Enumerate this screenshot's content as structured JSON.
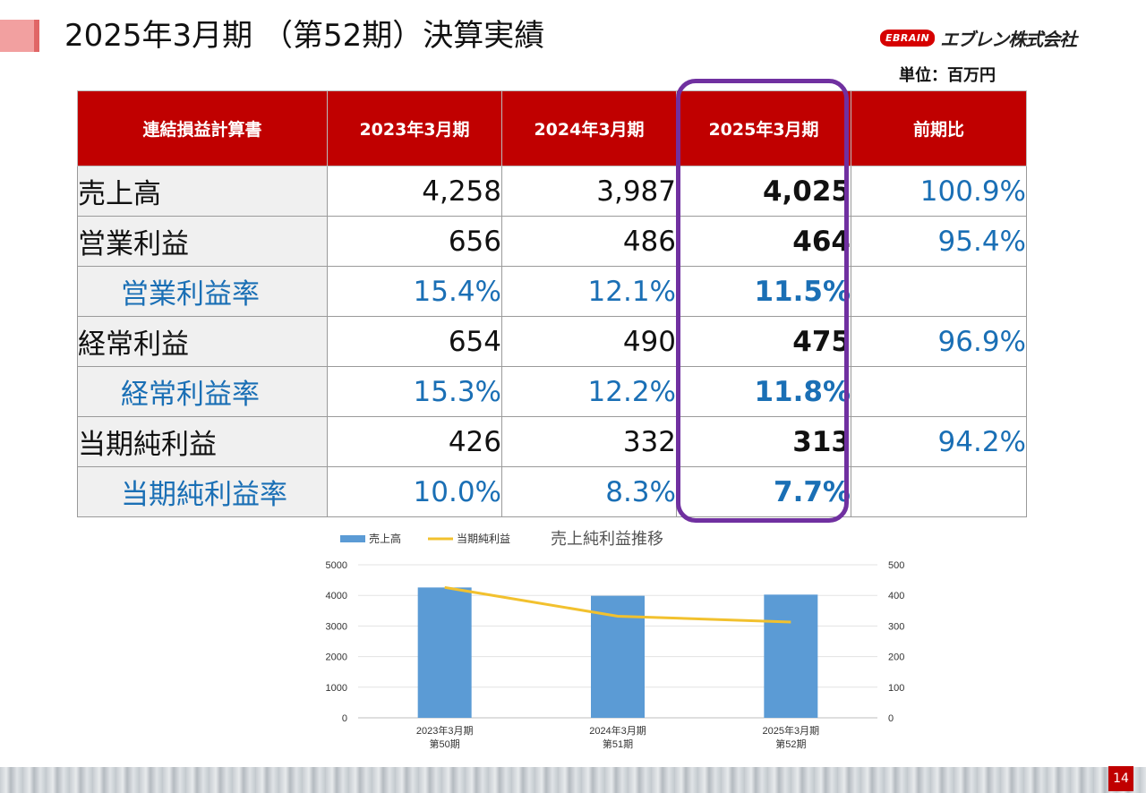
{
  "title": "2025年3月期 （第52期）決算実績",
  "logo": {
    "badge": "EBRAIN",
    "name": "エブレン株式会社"
  },
  "unit": "単位：百万円",
  "table": {
    "headers": [
      "連結損益計算書",
      "2023年3月期",
      "2024年3月期",
      "2025年3月期",
      "前期比"
    ],
    "rows": [
      {
        "label": "売上高",
        "v2023": "4,258",
        "v2024": "3,987",
        "v2025": "4,025",
        "ratio": "100.9%"
      },
      {
        "label": "営業利益",
        "v2023": "656",
        "v2024": "486",
        "v2025": "464",
        "ratio": "95.4%"
      },
      {
        "label": "営業利益率",
        "v2023": "15.4%",
        "v2024": "12.1%",
        "v2025": "11.5%",
        "ratio": ""
      },
      {
        "label": "経常利益",
        "v2023": "654",
        "v2024": "490",
        "v2025": "475",
        "ratio": "96.9%"
      },
      {
        "label": "経常利益率",
        "v2023": "15.3%",
        "v2024": "12.2%",
        "v2025": "11.8%",
        "ratio": ""
      },
      {
        "label": "当期純利益",
        "v2023": "426",
        "v2024": "332",
        "v2025": "313",
        "ratio": "94.2%"
      },
      {
        "label": "当期純利益率",
        "v2023": "10.0%",
        "v2024": "8.3%",
        "v2025": "7.7%",
        "ratio": ""
      }
    ]
  },
  "chart_data": {
    "type": "bar",
    "title": "売上純利益推移",
    "categories": [
      "2023年3月期\n第50期",
      "2024年3月期\n第51期",
      "2025年3月期\n第52期"
    ],
    "series": [
      {
        "name": "売上高",
        "kind": "bar",
        "axis": "left",
        "color": "#5b9bd5",
        "values": [
          4258,
          3987,
          4025
        ]
      },
      {
        "name": "当期純利益",
        "kind": "line",
        "axis": "right",
        "color": "#f2c12e",
        "values": [
          426,
          332,
          313
        ]
      }
    ],
    "ylim_left": [
      0,
      5000
    ],
    "yticks_left": [
      "0",
      "1000",
      "2000",
      "3000",
      "4000",
      "5000"
    ],
    "ylim_right": [
      0,
      500
    ],
    "yticks_right": [
      "0",
      "100",
      "200",
      "300",
      "400",
      "500"
    ],
    "grid": true,
    "legend": "top-left"
  },
  "page_number": "14"
}
